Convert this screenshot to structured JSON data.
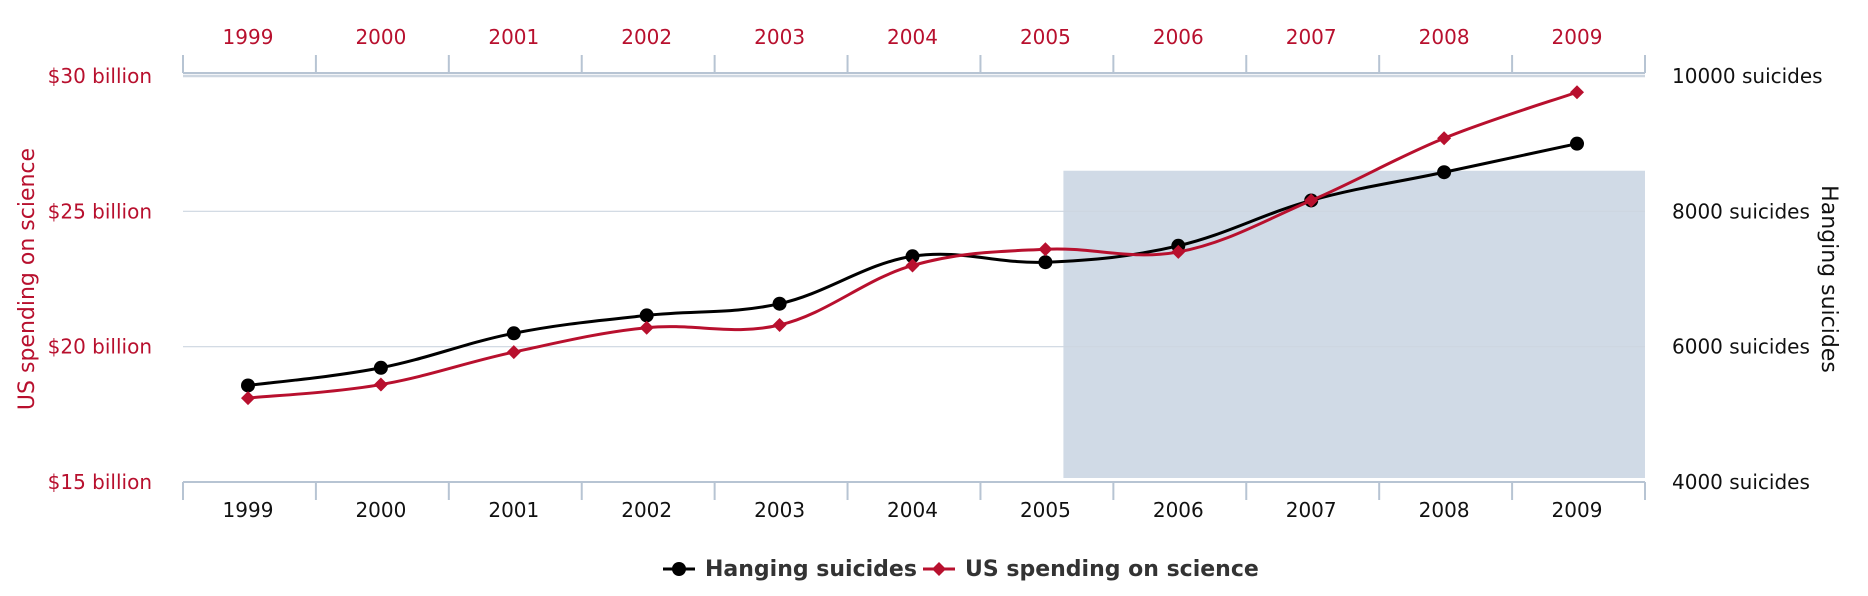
{
  "chart_data": {
    "type": "line",
    "categories": [
      "1999",
      "2000",
      "2001",
      "2002",
      "2003",
      "2004",
      "2005",
      "2006",
      "2007",
      "2008",
      "2009"
    ],
    "series": [
      {
        "name": "Hanging suicides",
        "axis": "right",
        "color": "#000000",
        "marker": "circle",
        "values": [
          5427,
          5688,
          6198,
          6462,
          6635,
          7336,
          7248,
          7491,
          8161,
          8578,
          9000
        ]
      },
      {
        "name": "US spending on science",
        "axis": "left",
        "color": "#b8102e",
        "marker": "diamond",
        "values": [
          18.1,
          18.6,
          19.8,
          20.7,
          20.8,
          23.0,
          23.6,
          23.5,
          25.4,
          27.7,
          29.4
        ]
      }
    ],
    "y_left": {
      "label": "US spending on science",
      "min": 15,
      "max": 30,
      "ticks": [
        15,
        20,
        25,
        30
      ],
      "tick_labels": [
        "$15 billion",
        "$20 billion",
        "$25 billion",
        "$30 billion"
      ]
    },
    "y_right": {
      "label": "Hanging suicides",
      "min": 4000,
      "max": 10000,
      "ticks": [
        4000,
        6000,
        8000,
        10000
      ],
      "tick_labels": [
        "4000 suicides",
        "6000 suicides",
        "8000 suicides",
        "10000 suicides"
      ]
    },
    "highlight_region": {
      "x_from": "2005",
      "x_to": "2009",
      "y_right_from": 4000,
      "y_right_to": 8600,
      "color": "#d0dae6"
    },
    "grid": true,
    "legend_position": "bottom-center",
    "colors": {
      "left_axis": "#b8102e",
      "right_axis": "#000000",
      "grid": "#cdd6e0",
      "axis_line": "#b7c4d3"
    }
  }
}
